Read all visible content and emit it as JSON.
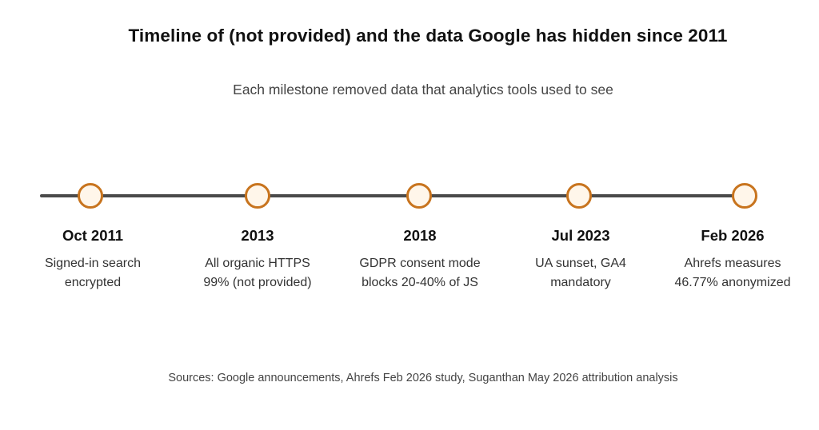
{
  "title": "Timeline of (not provided) and the data Google has hidden since 2011",
  "subtitle": "Each milestone removed data that analytics tools used to see",
  "colors": {
    "accent": "#c8741e",
    "line": "#4a4a4a"
  },
  "milestones": [
    {
      "date": "Oct 2011",
      "desc_line1": "Signed-in search",
      "desc_line2": "encrypted"
    },
    {
      "date": "2013",
      "desc_line1": "All organic HTTPS",
      "desc_line2": "99% (not provided)"
    },
    {
      "date": "2018",
      "desc_line1": "GDPR consent mode",
      "desc_line2": "blocks 20-40% of JS"
    },
    {
      "date": "Jul 2023",
      "desc_line1": "UA sunset, GA4",
      "desc_line2": "mandatory"
    },
    {
      "date": "Feb 2026",
      "desc_line1": "Ahrefs measures",
      "desc_line2": "46.77% anonymized"
    }
  ],
  "sources": "Sources: Google announcements, Ahrefs Feb 2026 study, Suganthan May 2026 attribution analysis"
}
